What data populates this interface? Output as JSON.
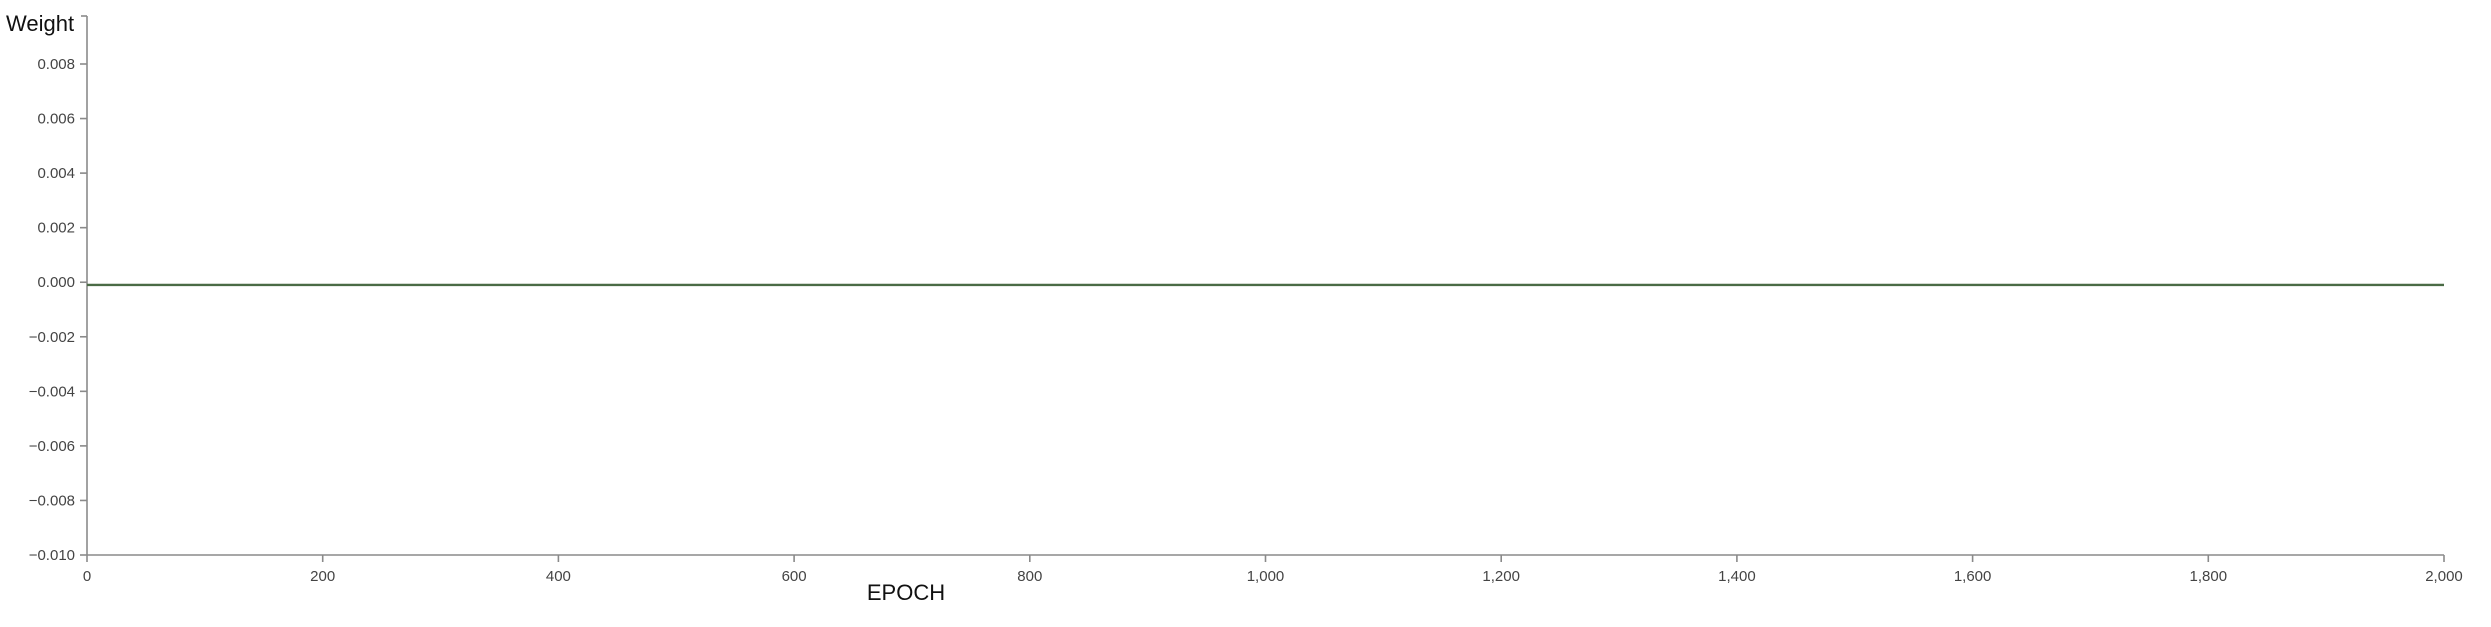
{
  "chart_data": {
    "type": "line",
    "title": "",
    "xlabel": "EPOCH",
    "ylabel": "Weight",
    "xlim": [
      0,
      2000
    ],
    "ylim": [
      -0.01,
      0.009
    ],
    "x_ticks": [
      0,
      200,
      400,
      600,
      800,
      1000,
      1200,
      1400,
      1600,
      1800,
      2000
    ],
    "x_tick_labels": [
      "0",
      "200",
      "400",
      "600",
      "800",
      "1,000",
      "1,200",
      "1,400",
      "1,600",
      "1,800",
      "2,000"
    ],
    "y_ticks": [
      0.008,
      0.006,
      0.004,
      0.002,
      0.0,
      -0.002,
      -0.004,
      -0.006,
      -0.008,
      -0.01
    ],
    "y_tick_labels": [
      "0.008",
      "0.006",
      "0.004",
      "0.002",
      "0.000",
      "−0.002",
      "−0.004",
      "−0.006",
      "−0.008",
      "−0.010"
    ],
    "grid": false,
    "legend": "none",
    "series": [
      {
        "color": "#4a6b45",
        "x": [
          0,
          100,
          200,
          300,
          400,
          500,
          600,
          700,
          800,
          900,
          1000,
          1100,
          1200,
          1300,
          1400,
          1500,
          1600,
          1700,
          1800,
          1900,
          2000
        ],
        "y": [
          -0.0001,
          -0.0001,
          -0.0001,
          -0.0001,
          -0.0001,
          -0.0001,
          -0.0001,
          -0.0001,
          -0.0001,
          -0.0001,
          -0.0001,
          -0.0001,
          -0.0001,
          -0.0001,
          -0.0001,
          -0.0001,
          -0.0001,
          -0.0001,
          -0.0001,
          -0.0001,
          -0.0001
        ]
      }
    ]
  }
}
